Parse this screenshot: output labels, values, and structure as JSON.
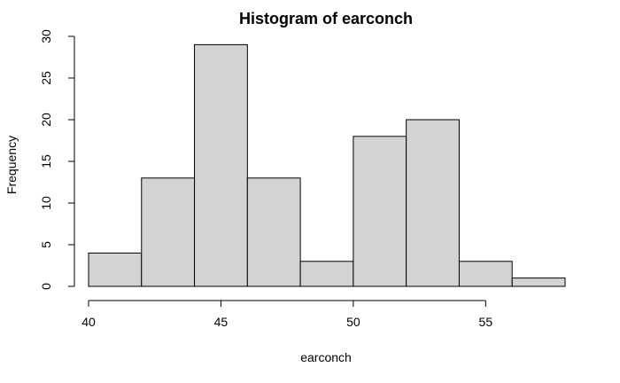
{
  "chart_data": {
    "type": "bar",
    "title": "Histogram of earconch",
    "xlabel": "earconch",
    "ylabel": "Frequency",
    "bins": [
      {
        "start": 40,
        "end": 42,
        "count": 4
      },
      {
        "start": 42,
        "end": 44,
        "count": 13
      },
      {
        "start": 44,
        "end": 46,
        "count": 29
      },
      {
        "start": 46,
        "end": 48,
        "count": 13
      },
      {
        "start": 48,
        "end": 50,
        "count": 3
      },
      {
        "start": 50,
        "end": 52,
        "count": 18
      },
      {
        "start": 52,
        "end": 54,
        "count": 20
      },
      {
        "start": 54,
        "end": 56,
        "count": 3
      },
      {
        "start": 56,
        "end": 58,
        "count": 1
      }
    ],
    "xticks": [
      40,
      45,
      50,
      55
    ],
    "yticks": [
      0,
      5,
      10,
      15,
      20,
      25,
      30
    ],
    "xlim": [
      40,
      58
    ],
    "ylim": [
      0,
      30
    ],
    "grid": false,
    "bar_color": "#d3d3d3",
    "edge_color": "#000000"
  }
}
